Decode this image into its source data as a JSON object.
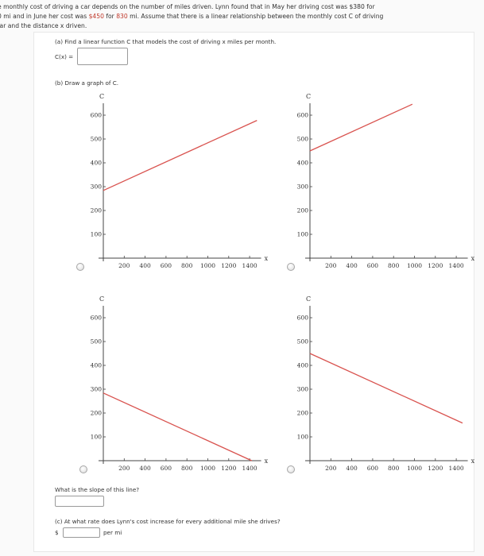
{
  "problem": {
    "intro_line1": "e monthly cost of driving a car depends on the number of miles driven. Lynn found that in May her driving cost was $380 for",
    "intro_line2_a": "0 mi and in June her cost was ",
    "intro_line2_cost": "$450",
    "intro_line2_b": " for ",
    "intro_line2_miles": "830",
    "intro_line2_c": " mi. Assume that there is a linear relationship between the monthly cost C of driving",
    "intro_line3": ":ar and the distance x driven."
  },
  "part_a": {
    "prompt": "(a) Find a linear function C that models the cost of driving x miles per month.",
    "label": "C(x) =",
    "value": ""
  },
  "part_b": {
    "prompt": "(b) Draw a graph of C.",
    "slope_prompt": "What is the slope of this line?",
    "slope_value": ""
  },
  "part_c": {
    "prompt": "(c) At what rate does Lynn's cost increase for every additional mile she drives?",
    "currency": "$",
    "value": "",
    "unit": "per mi"
  },
  "colors": {
    "line": "#d9534f",
    "highlight_text": "#c0392b"
  },
  "chart_data": [
    {
      "type": "line",
      "option": 1,
      "title": "",
      "xlabel": "x",
      "ylabel": "C",
      "xlim": [
        0,
        1500
      ],
      "ylim": [
        0,
        650
      ],
      "xticks": [
        200,
        400,
        600,
        800,
        1000,
        1200,
        1400
      ],
      "yticks": [
        100,
        200,
        300,
        400,
        500,
        600
      ],
      "x": [
        0,
        1470
      ],
      "values": [
        284,
        578
      ],
      "selected": false
    },
    {
      "type": "line",
      "option": 2,
      "title": "",
      "xlabel": "x",
      "ylabel": "C",
      "xlim": [
        0,
        1500
      ],
      "ylim": [
        0,
        650
      ],
      "xticks": [
        200,
        400,
        600,
        800,
        1000,
        1200,
        1400
      ],
      "yticks": [
        100,
        200,
        300,
        400,
        500,
        600
      ],
      "x": [
        0,
        980
      ],
      "values": [
        450,
        646
      ],
      "selected": false
    },
    {
      "type": "line",
      "option": 3,
      "title": "",
      "xlabel": "x",
      "ylabel": "C",
      "xlim": [
        0,
        1500
      ],
      "ylim": [
        0,
        650
      ],
      "xticks": [
        200,
        400,
        600,
        800,
        1000,
        1200,
        1400
      ],
      "yticks": [
        100,
        200,
        300,
        400,
        500,
        600
      ],
      "x": [
        0,
        1420
      ],
      "values": [
        284,
        0
      ],
      "selected": false
    },
    {
      "type": "line",
      "option": 4,
      "title": "",
      "xlabel": "x",
      "ylabel": "C",
      "xlim": [
        0,
        1500
      ],
      "ylim": [
        0,
        650
      ],
      "xticks": [
        200,
        400,
        600,
        800,
        1000,
        1200,
        1400
      ],
      "yticks": [
        100,
        200,
        300,
        400,
        500,
        600
      ],
      "x": [
        0,
        1460
      ],
      "values": [
        450,
        158
      ],
      "selected": false
    }
  ],
  "axes": {
    "x_name": "x",
    "y_name": "C",
    "xticks": [
      "200",
      "400",
      "600",
      "800",
      "1000",
      "1200",
      "1400"
    ],
    "yticks": [
      "100",
      "200",
      "300",
      "400",
      "500",
      "600"
    ]
  }
}
